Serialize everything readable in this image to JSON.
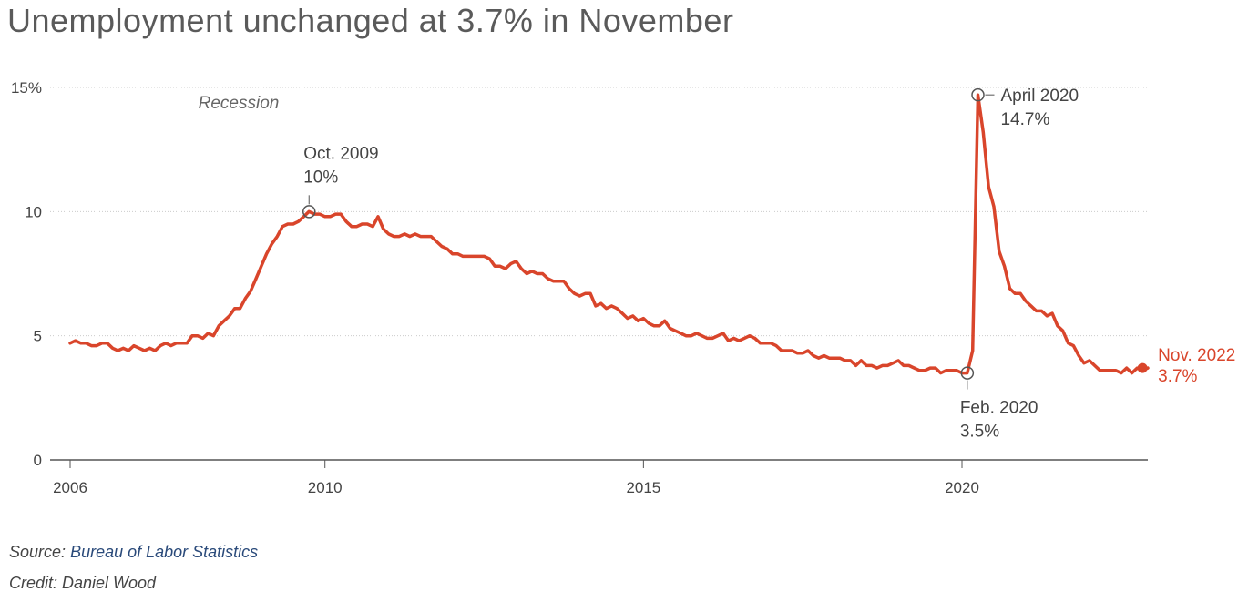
{
  "title": "Unemployment unchanged at 3.7% in November",
  "source_label": "Source:",
  "source_name": "Bureau of Labor Statistics",
  "credit": "Credit: Daniel Wood",
  "colors": {
    "line": "#d9452b",
    "text": "#444444",
    "grid": "#cccccc",
    "axis": "#555555",
    "marker": "#555555"
  },
  "chart_data": {
    "type": "line",
    "title": "Unemployment unchanged at 3.7% in November",
    "xlabel": "",
    "ylabel": "",
    "x_tick_labels": [
      "2006",
      "2010",
      "2015",
      "2020"
    ],
    "x_ticks": [
      2006,
      2010,
      2015,
      2020
    ],
    "y_tick_labels": [
      "15%",
      "10",
      "5",
      "0"
    ],
    "y_ticks": [
      15,
      10,
      5,
      0
    ],
    "xlim": [
      2006,
      2022.917
    ],
    "ylim": [
      0,
      15
    ],
    "grid": "horizontal dotted",
    "recession_label": "Recession",
    "series": [
      {
        "start": "2006-01",
        "frequency": "monthly",
        "values": [
          4.7,
          4.8,
          4.7,
          4.7,
          4.6,
          4.6,
          4.7,
          4.7,
          4.5,
          4.4,
          4.5,
          4.4,
          4.6,
          4.5,
          4.4,
          4.5,
          4.4,
          4.6,
          4.7,
          4.6,
          4.7,
          4.7,
          4.7,
          5.0,
          5.0,
          4.9,
          5.1,
          5.0,
          5.4,
          5.6,
          5.8,
          6.1,
          6.1,
          6.5,
          6.8,
          7.3,
          7.8,
          8.3,
          8.7,
          9.0,
          9.4,
          9.5,
          9.5,
          9.6,
          9.8,
          10.0,
          9.9,
          9.9,
          9.8,
          9.8,
          9.9,
          9.9,
          9.6,
          9.4,
          9.4,
          9.5,
          9.5,
          9.4,
          9.8,
          9.3,
          9.1,
          9.0,
          9.0,
          9.1,
          9.0,
          9.1,
          9.0,
          9.0,
          9.0,
          8.8,
          8.6,
          8.5,
          8.3,
          8.3,
          8.2,
          8.2,
          8.2,
          8.2,
          8.2,
          8.1,
          7.8,
          7.8,
          7.7,
          7.9,
          8.0,
          7.7,
          7.5,
          7.6,
          7.5,
          7.5,
          7.3,
          7.2,
          7.2,
          7.2,
          6.9,
          6.7,
          6.6,
          6.7,
          6.7,
          6.2,
          6.3,
          6.1,
          6.2,
          6.1,
          5.9,
          5.7,
          5.8,
          5.6,
          5.7,
          5.5,
          5.4,
          5.4,
          5.6,
          5.3,
          5.2,
          5.1,
          5.0,
          5.0,
          5.1,
          5.0,
          4.9,
          4.9,
          5.0,
          5.1,
          4.8,
          4.9,
          4.8,
          4.9,
          5.0,
          4.9,
          4.7,
          4.7,
          4.7,
          4.6,
          4.4,
          4.4,
          4.4,
          4.3,
          4.3,
          4.4,
          4.2,
          4.1,
          4.2,
          4.1,
          4.1,
          4.1,
          4.0,
          4.0,
          3.8,
          4.0,
          3.8,
          3.8,
          3.7,
          3.8,
          3.8,
          3.9,
          4.0,
          3.8,
          3.8,
          3.7,
          3.6,
          3.6,
          3.7,
          3.7,
          3.5,
          3.6,
          3.6,
          3.6,
          3.5,
          3.5,
          4.4,
          14.7,
          13.2,
          11.0,
          10.2,
          8.4,
          7.8,
          6.9,
          6.7,
          6.7,
          6.4,
          6.2,
          6.0,
          6.0,
          5.8,
          5.9,
          5.4,
          5.2,
          4.7,
          4.6,
          4.2,
          3.9,
          4.0,
          3.8,
          3.6,
          3.6,
          3.6,
          3.6,
          3.5,
          3.7,
          3.5,
          3.7,
          3.6,
          3.7
        ]
      }
    ],
    "annotations": [
      {
        "x": "2009-10",
        "y": 10.0,
        "label": "Oct. 2009",
        "value": "10%"
      },
      {
        "x": "2020-02",
        "y": 3.5,
        "label": "Feb. 2020",
        "value": "3.5%"
      },
      {
        "x": "2020-04",
        "y": 14.7,
        "label": "April 2020",
        "value": "14.7%"
      },
      {
        "x": "2022-11",
        "y": 3.7,
        "label": "Nov. 2022",
        "value": "3.7%"
      }
    ]
  }
}
